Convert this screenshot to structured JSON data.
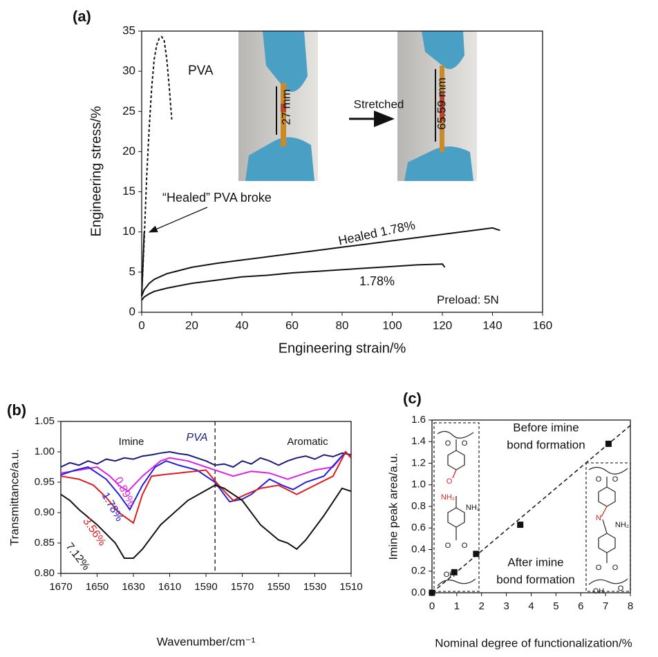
{
  "chart_data": [
    {
      "type": "line",
      "panel": "(a)",
      "x_label": "Engineering strain/%",
      "y_label": "Engineering stress/%",
      "xlim": [
        0,
        160
      ],
      "ylim": [
        0,
        35
      ],
      "xticks": [
        0,
        20,
        40,
        60,
        80,
        100,
        120,
        140,
        160
      ],
      "yticks": [
        0,
        5,
        10,
        15,
        20,
        25,
        30,
        35
      ],
      "series": [
        {
          "color": "#111111",
          "dash": true,
          "x": [
            0,
            1,
            2,
            3,
            4,
            5,
            6,
            7,
            8,
            9,
            10,
            11,
            12
          ],
          "values": [
            2,
            9,
            17,
            23,
            28,
            31.5,
            33.3,
            34.1,
            34.3,
            33.8,
            31.5,
            28,
            24
          ]
        },
        {
          "color": "#111111",
          "dash": false,
          "x": [
            0,
            0.5,
            1
          ],
          "values": [
            2,
            6,
            10
          ]
        },
        {
          "color": "#111111",
          "dash": false,
          "x": [
            0,
            1,
            3,
            5,
            10,
            20,
            30,
            40,
            50,
            60,
            70,
            80,
            90,
            100,
            110,
            120,
            130,
            140,
            143
          ],
          "values": [
            2,
            2.8,
            3.6,
            4.1,
            4.8,
            5.6,
            6.1,
            6.5,
            6.9,
            7.3,
            7.7,
            8.1,
            8.5,
            8.9,
            9.3,
            9.7,
            10.1,
            10.5,
            10.2
          ]
        },
        {
          "color": "#111111",
          "dash": false,
          "x": [
            0,
            1,
            3,
            5,
            10,
            20,
            30,
            40,
            50,
            60,
            70,
            80,
            90,
            100,
            110,
            120,
            121
          ],
          "values": [
            1.5,
            1.9,
            2.3,
            2.6,
            3.0,
            3.6,
            4.0,
            4.4,
            4.6,
            4.9,
            5.1,
            5.3,
            5.5,
            5.7,
            5.9,
            6.0,
            5.6
          ]
        }
      ],
      "annotations": [
        "PVA",
        "“Healed” PVA broke",
        "Healed 1.78%",
        "1.78%",
        "Preload: 5N"
      ],
      "inset_labels": [
        "27 mm",
        "Stretched",
        "65.59 mm"
      ]
    },
    {
      "type": "line",
      "panel": "(b)",
      "x_label": "Wavenumber/cm⁻¹",
      "y_label": "Transmittance/a.u.",
      "xlim": [
        1670,
        1510
      ],
      "ylim": [
        0.8,
        1.05
      ],
      "xticks": [
        1670,
        1650,
        1630,
        1610,
        1590,
        1570,
        1550,
        1530,
        1510
      ],
      "yticks": [
        {
          "value": 0.8,
          "label": "0.80"
        },
        0.85,
        {
          "value": 0.9,
          "label": "0.90"
        },
        0.95,
        {
          "value": 1.0,
          "label": "1.00"
        },
        1.05
      ],
      "vline": 1585,
      "series": [
        {
          "name": "PVA",
          "color": "#1a1a7a",
          "x": [
            1670,
            1665,
            1660,
            1655,
            1650,
            1645,
            1640,
            1635,
            1630,
            1625,
            1620,
            1615,
            1610,
            1605,
            1600,
            1595,
            1590,
            1585,
            1580,
            1575,
            1570,
            1565,
            1560,
            1555,
            1550,
            1545,
            1540,
            1535,
            1530,
            1525,
            1520,
            1515,
            1510
          ],
          "values": [
            0.975,
            0.982,
            0.978,
            0.985,
            0.98,
            0.988,
            0.985,
            0.99,
            0.988,
            0.993,
            0.995,
            0.998,
            1.0,
            0.997,
            0.995,
            0.99,
            0.985,
            0.978,
            0.98,
            0.975,
            0.985,
            0.98,
            0.99,
            0.985,
            0.978,
            0.985,
            0.99,
            0.993,
            0.988,
            0.995,
            0.992,
            0.998,
            0.995
          ]
        },
        {
          "name": "0.89%",
          "color": "#e020e0",
          "x": [
            1670,
            1660,
            1650,
            1643,
            1638,
            1633,
            1625,
            1615,
            1610,
            1600,
            1590,
            1580,
            1575,
            1565,
            1555,
            1545,
            1535,
            1530,
            1520,
            1513,
            1510
          ],
          "values": [
            0.965,
            0.97,
            0.975,
            0.96,
            0.945,
            0.935,
            0.96,
            0.985,
            0.99,
            0.985,
            0.975,
            0.965,
            0.96,
            0.968,
            0.965,
            0.955,
            0.965,
            0.97,
            0.975,
            1.0,
            0.99
          ]
        },
        {
          "name": "1.78%",
          "color": "#1f1fe0",
          "x": [
            1670,
            1662,
            1655,
            1645,
            1638,
            1632,
            1625,
            1618,
            1612,
            1605,
            1595,
            1585,
            1577,
            1570,
            1565,
            1555,
            1548,
            1542,
            1535,
            1525,
            1513,
            1510
          ],
          "values": [
            0.962,
            0.97,
            0.975,
            0.955,
            0.93,
            0.905,
            0.945,
            0.975,
            0.985,
            0.978,
            0.97,
            0.95,
            0.918,
            0.922,
            0.93,
            0.955,
            0.945,
            0.938,
            0.95,
            0.96,
            1.0,
            0.99
          ]
        },
        {
          "name": "3.56%",
          "color": "#e01b1b",
          "x": [
            1670,
            1660,
            1652,
            1645,
            1638,
            1630,
            1625,
            1620,
            1612,
            1605,
            1590,
            1583,
            1575,
            1568,
            1560,
            1550,
            1540,
            1530,
            1520,
            1513,
            1510
          ],
          "values": [
            0.96,
            0.955,
            0.945,
            0.925,
            0.9,
            0.883,
            0.93,
            0.96,
            0.963,
            0.965,
            0.97,
            0.945,
            0.92,
            0.93,
            0.94,
            0.945,
            0.93,
            0.945,
            0.96,
            1.0,
            0.99
          ]
        },
        {
          "name": "7.12%",
          "color": "#111111",
          "x": [
            1670,
            1665,
            1660,
            1650,
            1640,
            1635,
            1630,
            1625,
            1615,
            1600,
            1585,
            1580,
            1570,
            1560,
            1550,
            1545,
            1540,
            1535,
            1525,
            1515,
            1510
          ],
          "values": [
            0.93,
            0.92,
            0.905,
            0.88,
            0.85,
            0.825,
            0.825,
            0.84,
            0.88,
            0.92,
            0.945,
            0.94,
            0.92,
            0.88,
            0.855,
            0.85,
            0.84,
            0.855,
            0.895,
            0.94,
            0.935
          ]
        }
      ],
      "annotations": [
        "Imine",
        "Aromatic"
      ]
    },
    {
      "type": "scatter",
      "panel": "(c)",
      "x_label": "Nominal degree of functionalization/%",
      "y_label": "Imine peak area/a.u.",
      "xlim": [
        0,
        8
      ],
      "ylim": [
        0,
        1.6
      ],
      "xticks": [
        0,
        1,
        2,
        3,
        4,
        5,
        6,
        7,
        8
      ],
      "yticks": [
        {
          "value": 0,
          "label": "0.0"
        },
        0.2,
        0.4,
        0.6,
        0.8,
        {
          "value": 1.0,
          "label": "1.0"
        },
        1.2,
        1.4,
        1.6
      ],
      "x": [
        0,
        0.9,
        1.78,
        3.56,
        7.12
      ],
      "values": [
        0,
        0.19,
        0.36,
        0.63,
        1.38
      ],
      "color": "#111111",
      "trend": {
        "x": [
          0,
          8
        ],
        "values": [
          0,
          1.55
        ]
      },
      "annotations": [
        "Before imine",
        "bond formation",
        "After imine",
        "bond formation"
      ],
      "structure_before": [
        "O",
        "O",
        "O",
        "NH₂",
        "NH₂",
        "O",
        "O",
        "OH"
      ],
      "structure_after": [
        "O",
        "O",
        "N",
        "NH₂",
        "O",
        "O",
        "OH",
        "O"
      ]
    }
  ]
}
